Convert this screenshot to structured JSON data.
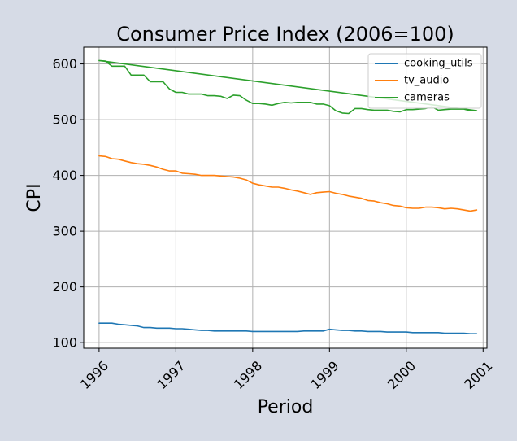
{
  "chart_data": {
    "type": "line",
    "title": "Consumer Price Index (2006=100)",
    "xlabel": "Period",
    "ylabel": "CPI",
    "xlim": [
      1995.8,
      2001.05
    ],
    "ylim": [
      90,
      630
    ],
    "x_ticks": [
      {
        "value": 1996,
        "label": "1996"
      },
      {
        "value": 1997,
        "label": "1997"
      },
      {
        "value": 1998,
        "label": "1998"
      },
      {
        "value": 1999,
        "label": "1999"
      },
      {
        "value": 2000,
        "label": "2000"
      },
      {
        "value": 2001,
        "label": "2001"
      }
    ],
    "y_ticks": [
      {
        "value": 100,
        "label": "100"
      },
      {
        "value": 200,
        "label": "200"
      },
      {
        "value": 300,
        "label": "300"
      },
      {
        "value": 400,
        "label": "400"
      },
      {
        "value": 500,
        "label": "500"
      },
      {
        "value": 600,
        "label": "600"
      }
    ],
    "grid": true,
    "legend": "top-right",
    "series": [
      {
        "name": "cooking_utils",
        "color": "#1f77b4",
        "x": [
          1996.0,
          1996.083,
          1996.167,
          1996.25,
          1996.333,
          1996.417,
          1996.5,
          1996.583,
          1996.667,
          1996.75,
          1996.833,
          1996.917,
          1997.0,
          1997.083,
          1997.167,
          1997.25,
          1997.333,
          1997.417,
          1997.5,
          1997.583,
          1997.667,
          1997.75,
          1997.833,
          1997.917,
          1998.0,
          1998.083,
          1998.167,
          1998.25,
          1998.333,
          1998.417,
          1998.5,
          1998.583,
          1998.667,
          1998.75,
          1998.833,
          1998.917,
          1999.0,
          1999.083,
          1999.167,
          1999.25,
          1999.333,
          1999.417,
          1999.5,
          1999.583,
          1999.667,
          1999.75,
          1999.833,
          1999.917,
          2000.0,
          2000.083,
          2000.167,
          2000.25,
          2000.333,
          2000.417,
          2000.5,
          2000.583,
          2000.667,
          2000.75,
          2000.833,
          2000.917
        ],
        "y": [
          135,
          135,
          135,
          133,
          132,
          131,
          130,
          127,
          127,
          126,
          126,
          126,
          125,
          125,
          124,
          123,
          122,
          122,
          121,
          121,
          121,
          121,
          121,
          121,
          120,
          120,
          120,
          120,
          120,
          120,
          120,
          120,
          121,
          121,
          121,
          121,
          124,
          123,
          122,
          122,
          121,
          121,
          120,
          120,
          120,
          119,
          119,
          119,
          119,
          118,
          118,
          118,
          118,
          118,
          117,
          117,
          117,
          117,
          116,
          116
        ]
      },
      {
        "name": "tv_audio",
        "color": "#ff7f0e",
        "x": [
          1996.0,
          1996.083,
          1996.167,
          1996.25,
          1996.333,
          1996.417,
          1996.5,
          1996.583,
          1996.667,
          1996.75,
          1996.833,
          1996.917,
          1997.0,
          1997.083,
          1997.167,
          1997.25,
          1997.333,
          1997.417,
          1997.5,
          1997.583,
          1997.667,
          1997.75,
          1997.833,
          1997.917,
          1998.0,
          1998.083,
          1998.167,
          1998.25,
          1998.333,
          1998.417,
          1998.5,
          1998.583,
          1998.667,
          1998.75,
          1998.833,
          1998.917,
          1999.0,
          1999.083,
          1999.167,
          1999.25,
          1999.333,
          1999.417,
          1999.5,
          1999.583,
          1999.667,
          1999.75,
          1999.833,
          1999.917,
          2000.0,
          2000.083,
          2000.167,
          2000.25,
          2000.333,
          2000.417,
          2000.5,
          2000.583,
          2000.667,
          2000.75,
          2000.833,
          2000.917
        ],
        "y": [
          435,
          434,
          430,
          429,
          426,
          423,
          421,
          420,
          418,
          415,
          411,
          408,
          408,
          404,
          403,
          402,
          400,
          400,
          400,
          399,
          398,
          397,
          395,
          392,
          386,
          383,
          381,
          379,
          379,
          377,
          374,
          372,
          369,
          366,
          369,
          370,
          371,
          368,
          366,
          363,
          361,
          359,
          355,
          354,
          351,
          349,
          346,
          345,
          342,
          341,
          341,
          343,
          343,
          342,
          340,
          341,
          340,
          338,
          336,
          338
        ]
      },
      {
        "name": "cameras",
        "color": "#2ca02c",
        "x": [
          1996.0,
          1996.083,
          1996.167,
          1996.25,
          1996.333,
          1996.417,
          1996.5,
          1996.583,
          1996.667,
          1996.75,
          1996.833,
          1996.917,
          1997.0,
          1997.083,
          1997.167,
          1997.25,
          1997.333,
          1997.417,
          1997.5,
          1997.583,
          1997.667,
          1997.75,
          1997.833,
          1997.917,
          1998.0,
          1998.083,
          1998.167,
          1998.25,
          1998.333,
          1998.417,
          1998.5,
          1998.583,
          1998.667,
          1998.75,
          1998.833,
          1998.917,
          1999.0,
          1999.083,
          1999.167,
          1999.25,
          1999.333,
          1999.417,
          1999.5,
          1999.583,
          1999.667,
          1999.75,
          1999.833,
          1999.917,
          2000.0,
          2000.083,
          2000.167,
          2000.25,
          2000.333,
          2000.417,
          2000.5,
          2000.583,
          2000.667,
          2000.75,
          2000.833,
          2000.917,
          1996.0
        ],
        "y": [
          606,
          605,
          596,
          596,
          596,
          580,
          580,
          580,
          568,
          568,
          568,
          555,
          549,
          549,
          546,
          546,
          546,
          543,
          543,
          542,
          538,
          544,
          543,
          535,
          529,
          529,
          528,
          526,
          529,
          531,
          530,
          531,
          531,
          531,
          528,
          528,
          525,
          516,
          512,
          511,
          520,
          520,
          518,
          517,
          517,
          517,
          515,
          514,
          518,
          518,
          519,
          520,
          523,
          517,
          518,
          519,
          519,
          519,
          516,
          516,
          606
        ]
      }
    ]
  }
}
